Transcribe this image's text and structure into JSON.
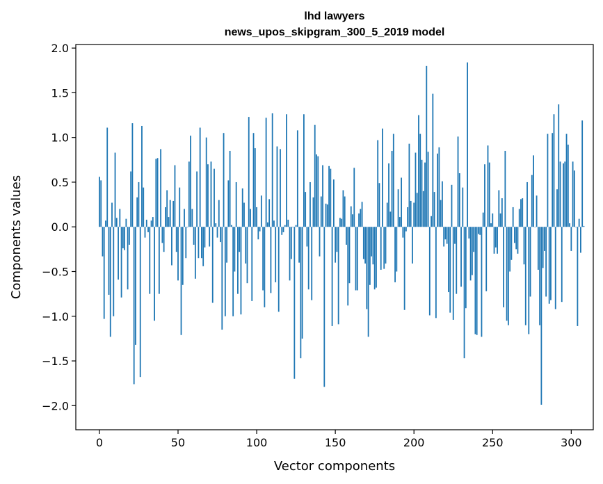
{
  "chart_data": {
    "type": "bar",
    "title": "lhd lawyers",
    "subtitle": "news_upos_skipgram_300_5_2019 model",
    "xlabel": "Vector components",
    "ylabel": "Components values",
    "xlim": [
      -15,
      314
    ],
    "ylim": [
      -2.27,
      2.04
    ],
    "xticks": [
      0,
      50,
      100,
      150,
      200,
      250,
      300
    ],
    "xtick_labels": [
      "0",
      "50",
      "100",
      "150",
      "200",
      "250",
      "300"
    ],
    "yticks": [
      -2.0,
      -1.5,
      -1.0,
      -0.5,
      0.0,
      0.5,
      1.0,
      1.5,
      2.0
    ],
    "ytick_labels": [
      "−2.0",
      "−1.5",
      "−1.0",
      "−0.5",
      "0.0",
      "0.5",
      "1.0",
      "1.5",
      "2.0"
    ],
    "grid": false,
    "bar_color": "#1f77b4",
    "values": [
      0.56,
      0.52,
      -0.33,
      -1.03,
      0.07,
      1.11,
      -0.76,
      -1.23,
      0.27,
      -1.0,
      0.83,
      0.1,
      -0.59,
      0.2,
      -0.79,
      -0.24,
      -0.26,
      0.09,
      -0.7,
      -0.2,
      0.62,
      1.16,
      -1.76,
      -1.32,
      0.33,
      0.5,
      -1.68,
      1.13,
      0.44,
      -0.12,
      0.08,
      -0.06,
      -0.75,
      0.07,
      0.11,
      -1.05,
      0.76,
      0.77,
      -0.75,
      0.87,
      -0.18,
      -0.28,
      0.22,
      0.41,
      0.11,
      0.3,
      -0.43,
      0.29,
      0.69,
      -0.28,
      -0.6,
      0.44,
      -1.21,
      -0.65,
      0.2,
      -0.35,
      0.0,
      0.73,
      1.02,
      0.2,
      -0.2,
      -0.58,
      0.62,
      -0.35,
      1.11,
      -0.35,
      -0.44,
      -0.23,
      1.0,
      0.7,
      -0.22,
      0.73,
      -0.85,
      0.65,
      0.04,
      -0.12,
      0.3,
      -0.17,
      -1.15,
      1.05,
      -1.0,
      -0.4,
      0.52,
      0.85,
      0.02,
      -1.0,
      -0.5,
      0.5,
      -0.75,
      -0.28,
      -0.98,
      0.43,
      0.27,
      -0.41,
      -0.63,
      1.23,
      0.2,
      -0.83,
      1.05,
      0.88,
      0.22,
      -0.14,
      -0.05,
      0.35,
      -0.71,
      -0.9,
      1.22,
      0.05,
      0.31,
      -0.74,
      1.27,
      0.07,
      -0.62,
      0.9,
      -0.95,
      0.87,
      -0.09,
      -0.06,
      0.02,
      1.26,
      0.08,
      -0.6,
      -0.36,
      0.0,
      -1.7,
      0.02,
      1.08,
      -0.4,
      -1.47,
      -1.25,
      1.26,
      0.39,
      -0.22,
      -0.7,
      0.5,
      -0.82,
      0.33,
      1.14,
      0.81,
      0.79,
      -0.33,
      0.34,
      0.69,
      -1.79,
      0.26,
      0.25,
      0.68,
      0.65,
      -1.11,
      0.53,
      -0.4,
      -0.28,
      -1.09,
      0.1,
      0.09,
      0.41,
      0.34,
      -0.2,
      -0.88,
      -0.63,
      0.23,
      0.14,
      0.66,
      -0.71,
      -0.71,
      0.15,
      0.2,
      0.28,
      -0.36,
      -0.41,
      -0.92,
      -1.23,
      -0.65,
      -0.33,
      -0.42,
      -0.7,
      -0.68,
      0.97,
      0.49,
      -0.48,
      1.1,
      -0.47,
      -0.41,
      0.27,
      0.71,
      0.17,
      0.85,
      1.04,
      -0.62,
      -0.5,
      0.42,
      0.11,
      0.55,
      -0.12,
      -0.93,
      -0.05,
      0.22,
      0.93,
      0.29,
      -0.41,
      0.27,
      0.83,
      0.38,
      1.25,
      1.04,
      0.75,
      0.4,
      0.72,
      1.8,
      0.84,
      -0.99,
      0.12,
      1.49,
      0.39,
      -1.02,
      0.82,
      0.89,
      0.3,
      0.51,
      -0.22,
      -0.14,
      -0.19,
      -0.73,
      -0.96,
      0.47,
      -1.04,
      -0.19,
      -0.75,
      1.01,
      0.6,
      -0.67,
      0.44,
      -1.47,
      -0.91,
      1.84,
      -0.13,
      -0.6,
      -0.54,
      -0.28,
      -1.2,
      -1.21,
      -0.08,
      -0.09,
      -1.23,
      0.16,
      0.7,
      -0.72,
      0.91,
      0.72,
      0.04,
      0.15,
      -0.3,
      -0.23,
      -0.3,
      0.41,
      0.15,
      0.32,
      -0.9,
      0.85,
      -1.05,
      -1.1,
      -0.5,
      -0.37,
      0.22,
      -0.18,
      -0.25,
      -0.3,
      0.2,
      0.31,
      0.32,
      -0.42,
      -1.1,
      0.5,
      -1.2,
      -0.78,
      0.58,
      0.8,
      0.0,
      0.35,
      -0.48,
      -1.1,
      -1.99,
      -0.46,
      -0.27,
      -0.78,
      1.04,
      -0.86,
      -0.82,
      1.05,
      1.26,
      -0.92,
      0.42,
      1.37,
      0.73,
      -0.84,
      0.71,
      0.73,
      1.04,
      0.92,
      0.04,
      -0.27,
      0.73,
      0.63,
      0.0,
      -1.11,
      0.09,
      -0.29,
      1.19,
      0.01
    ]
  }
}
